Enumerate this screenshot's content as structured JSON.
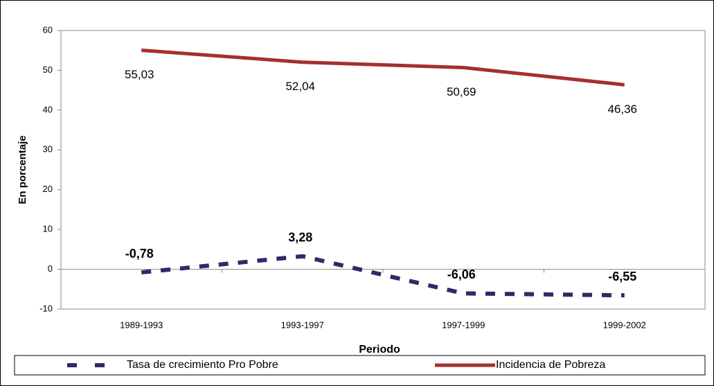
{
  "chart_data": {
    "type": "line",
    "x_label": "Periodo",
    "y_label": "En porcentaje",
    "categories": [
      "1989-1993",
      "1993-1997",
      "1997-1999",
      "1999-2002"
    ],
    "series": [
      {
        "name": "Tasa de crecimiento Pro Pobre",
        "color": "#2b2d64",
        "dashed": true,
        "label_position": "above",
        "label_bold": true,
        "values": [
          -0.78,
          3.28,
          -6.06,
          -6.55
        ],
        "value_labels": [
          "-0,78",
          "3,28",
          "-6,06",
          "-6,55"
        ]
      },
      {
        "name": "Incidencia de Pobreza",
        "color": "#a52f30",
        "dashed": false,
        "label_position": "below",
        "label_bold": false,
        "values": [
          55.03,
          52.04,
          50.69,
          46.36
        ],
        "value_labels": [
          "55,03",
          "52,04",
          "50,69",
          "46,36"
        ]
      }
    ],
    "ylim": [
      -10,
      60
    ],
    "yticks": [
      -10,
      0,
      10,
      20,
      30,
      40,
      50,
      60
    ],
    "grid": false,
    "legend": "bottom"
  }
}
